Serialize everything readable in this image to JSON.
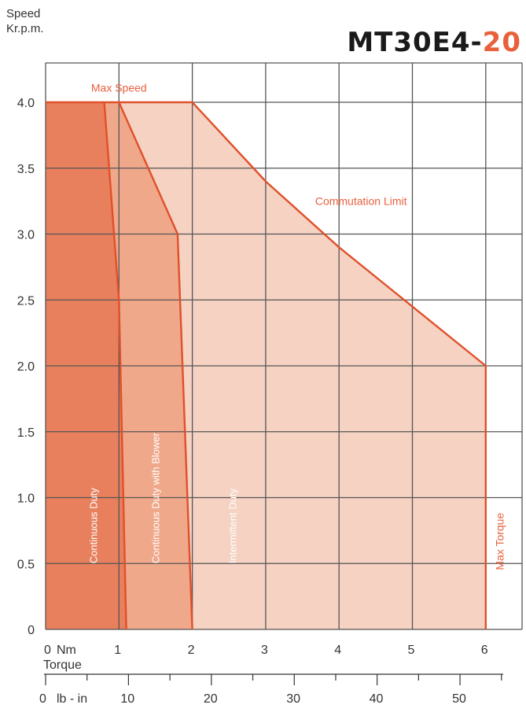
{
  "title": {
    "model_base": "MT30E4-",
    "model_accent": "20"
  },
  "axes": {
    "y_label_line1": "Speed",
    "y_label_line2": "Kr.p.m.",
    "x_label_unit": "Nm",
    "x_label_name": "Torque",
    "x2_label_unit": "lb - in"
  },
  "colors": {
    "continuous": "#e8805e",
    "blower": "#f0a88a",
    "intermittent": "#f5d2c2",
    "line": "#e0502a",
    "grid": "#555555",
    "accent": "#e8603c"
  },
  "chart_data": {
    "type": "area",
    "title": "MT30E4-20",
    "xlabel": "Torque",
    "x_unit": "Nm",
    "ylabel": "Speed Kr.p.m.",
    "xlim": [
      0,
      6.5
    ],
    "ylim": [
      0,
      4.4
    ],
    "grid": true,
    "x_ticks": [
      0,
      1,
      2,
      3,
      4,
      5,
      6
    ],
    "x_tick_labels": [
      "0",
      "1",
      "2",
      "3",
      "4",
      "5",
      "6"
    ],
    "y_ticks": [
      0,
      0.5,
      1.0,
      1.5,
      2.0,
      2.5,
      3.0,
      3.5,
      4.0
    ],
    "y_tick_labels": [
      "0",
      "0.5",
      "1.0",
      "1.5",
      "2.0",
      "2.5",
      "3.0",
      "3.5",
      "4.0"
    ],
    "secondary_x_unit": "lb - in",
    "secondary_x_ticks": [
      0,
      10,
      20,
      30,
      40,
      50
    ],
    "secondary_x_tick_labels": [
      "0",
      "10",
      "20",
      "30",
      "40",
      "50"
    ],
    "series": [
      {
        "name": "Continuous Duty",
        "points": [
          [
            0,
            0
          ],
          [
            0,
            4.0
          ],
          [
            0.8,
            4.0
          ],
          [
            1.0,
            2.5
          ],
          [
            1.1,
            0
          ]
        ]
      },
      {
        "name": "Continuous Duty with Blower",
        "points": [
          [
            1.1,
            0
          ],
          [
            1.0,
            2.5
          ],
          [
            0.8,
            4.0
          ],
          [
            1.0,
            4.0
          ],
          [
            1.8,
            3.0
          ],
          [
            2.0,
            0
          ]
        ]
      },
      {
        "name": "Intermittent Duty",
        "points": [
          [
            2.0,
            0
          ],
          [
            1.8,
            3.0
          ],
          [
            1.0,
            4.0
          ],
          [
            2.0,
            4.0
          ],
          [
            3.0,
            3.4
          ],
          [
            4.0,
            2.9
          ],
          [
            6.0,
            2.0
          ],
          [
            6.0,
            0
          ]
        ]
      }
    ],
    "annotations": [
      {
        "text": "Max Speed",
        "x": 1.0,
        "y": 4.1
      },
      {
        "text": "Commutation Limit",
        "x": 4.3,
        "y": 3.25
      },
      {
        "text": "Max Torque",
        "x": 6.2,
        "y": 1.0
      }
    ]
  }
}
